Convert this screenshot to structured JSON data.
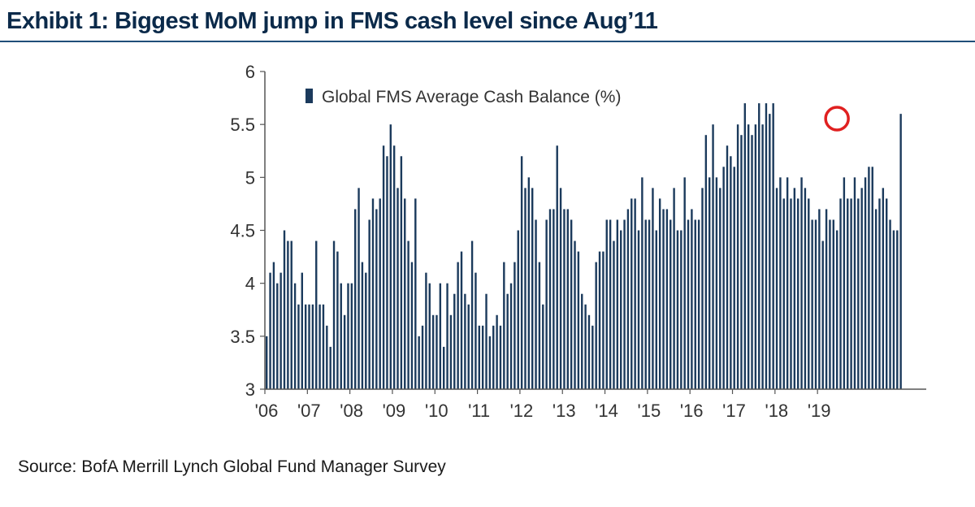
{
  "title": "Exhibit 1: Biggest MoM jump in FMS cash level since Aug’11",
  "source": "Source:   BofA Merrill Lynch Global Fund Manager Survey",
  "colors": {
    "bar": "#1b3a5c",
    "highlight": "#e02020",
    "title": "#0b2a4a",
    "rule": "#1f4e79"
  },
  "chart_data": {
    "type": "bar",
    "title": "",
    "xlabel": "",
    "ylabel": "",
    "ylim": [
      3,
      6
    ],
    "yticks": [
      "3",
      "3.5",
      "4",
      "4.5",
      "5",
      "5.5",
      "6"
    ],
    "xticks": [
      "'06",
      "'07",
      "'08",
      "'09",
      "'10",
      "'11",
      "'12",
      "'13",
      "'14",
      "'15",
      "'16",
      "'17",
      "'18",
      "'19"
    ],
    "series": [
      {
        "name": "Global FMS Average Cash Balance (%)",
        "start": "2006-01",
        "values": [
          3.5,
          4.1,
          4.2,
          4.0,
          4.1,
          4.5,
          4.4,
          4.4,
          4.0,
          3.8,
          4.1,
          3.8,
          3.8,
          3.8,
          4.4,
          3.8,
          3.8,
          3.6,
          3.4,
          4.4,
          4.3,
          4.0,
          3.7,
          4.0,
          4.0,
          4.7,
          4.9,
          4.2,
          4.1,
          4.6,
          4.8,
          4.7,
          4.8,
          5.3,
          5.2,
          5.5,
          5.3,
          4.9,
          5.2,
          4.8,
          4.4,
          4.2,
          4.8,
          3.5,
          3.6,
          4.1,
          4.0,
          3.7,
          3.7,
          4.0,
          3.4,
          4.0,
          3.7,
          3.9,
          4.2,
          4.3,
          3.9,
          3.8,
          4.4,
          4.1,
          3.6,
          3.6,
          3.9,
          3.5,
          3.6,
          3.7,
          3.6,
          4.2,
          3.9,
          4.0,
          4.2,
          4.5,
          5.2,
          4.9,
          5.0,
          4.9,
          4.6,
          4.2,
          3.8,
          4.6,
          4.7,
          4.7,
          5.3,
          4.9,
          4.7,
          4.7,
          4.6,
          4.4,
          4.3,
          3.9,
          3.8,
          3.7,
          3.6,
          4.2,
          4.3,
          4.3,
          4.6,
          4.6,
          4.4,
          4.6,
          4.5,
          4.6,
          4.7,
          4.8,
          4.8,
          4.5,
          5.0,
          4.6,
          4.6,
          4.9,
          4.5,
          4.8,
          4.7,
          4.7,
          4.6,
          4.9,
          4.5,
          4.5,
          5.0,
          4.6,
          4.7,
          4.6,
          4.6,
          4.9,
          5.4,
          5.0,
          5.5,
          5.0,
          4.9,
          5.1,
          5.3,
          5.2,
          5.1,
          5.5,
          5.4,
          5.7,
          5.5,
          5.4,
          5.5,
          5.7,
          5.5,
          5.7,
          5.6,
          5.7,
          4.9,
          5.0,
          4.8,
          5.0,
          4.8,
          4.9,
          4.8,
          5.0,
          4.9,
          4.8,
          4.6,
          4.6,
          4.7,
          4.4,
          4.7,
          4.6,
          4.6,
          4.5,
          4.8,
          5.0,
          4.8,
          4.8,
          5.0,
          4.8,
          4.9,
          5.0,
          5.1,
          5.1,
          4.7,
          4.8,
          4.9,
          4.8,
          4.6,
          4.5,
          4.5,
          5.6
        ]
      }
    ],
    "highlight_index": 161
  }
}
